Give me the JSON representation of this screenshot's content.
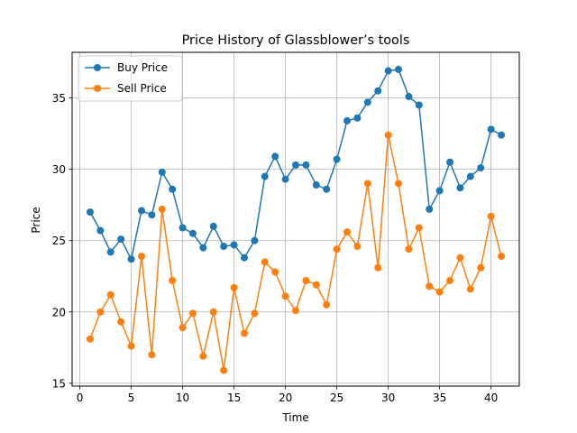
{
  "chart_data": {
    "type": "line",
    "title": "Price History of Glassblower’s tools",
    "xlabel": "Time",
    "ylabel": "Price",
    "xlim": [
      -0.75,
      42.75
    ],
    "ylim": [
      14.8,
      38.2
    ],
    "x_ticks": [
      0,
      5,
      10,
      15,
      20,
      25,
      30,
      35,
      40
    ],
    "y_ticks": [
      15,
      20,
      25,
      30,
      35
    ],
    "grid": true,
    "legend_position": "top-left",
    "marker": "circle",
    "x": [
      1,
      2,
      3,
      4,
      5,
      6,
      7,
      8,
      9,
      10,
      11,
      12,
      13,
      14,
      15,
      16,
      17,
      18,
      19,
      20,
      21,
      22,
      23,
      24,
      25,
      26,
      27,
      28,
      29,
      30,
      31,
      32,
      33,
      34,
      35,
      36,
      37,
      38,
      39,
      40,
      41
    ],
    "series": [
      {
        "name": "Buy Price",
        "color": "#1f77b4",
        "values": [
          27.0,
          25.7,
          24.2,
          25.1,
          23.7,
          27.1,
          26.8,
          29.8,
          28.6,
          25.9,
          25.5,
          24.5,
          26.0,
          24.6,
          24.7,
          23.8,
          25.0,
          29.5,
          30.9,
          29.3,
          30.3,
          30.3,
          28.9,
          28.6,
          30.7,
          33.4,
          33.6,
          34.7,
          35.5,
          36.9,
          37.0,
          35.1,
          34.5,
          27.2,
          28.5,
          30.5,
          28.7,
          29.5,
          30.1,
          32.8,
          32.4
        ]
      },
      {
        "name": "Sell Price",
        "color": "#ff7f0e",
        "values": [
          18.1,
          20.0,
          21.2,
          19.3,
          17.6,
          23.9,
          17.0,
          27.2,
          22.2,
          18.9,
          19.9,
          16.9,
          20.0,
          15.9,
          21.7,
          18.5,
          19.9,
          23.5,
          22.8,
          21.1,
          20.1,
          22.2,
          21.9,
          20.5,
          24.4,
          25.6,
          24.6,
          29.0,
          23.1,
          32.4,
          29.0,
          24.4,
          25.9,
          21.8,
          21.4,
          22.2,
          23.8,
          21.6,
          23.1,
          26.7,
          23.9
        ]
      }
    ]
  }
}
